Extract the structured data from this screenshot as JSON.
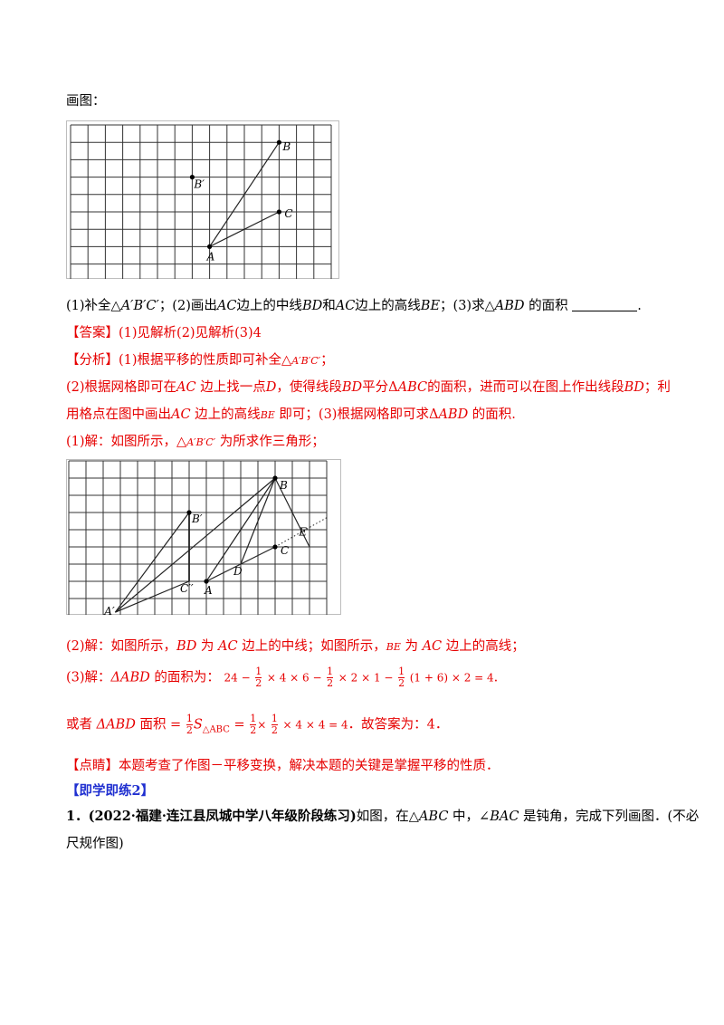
{
  "drawing_label": "画图：",
  "figure1": {
    "points": [
      {
        "label": "B",
        "gx": 12,
        "gy": 0
      },
      {
        "label": "B′",
        "gx": 7,
        "gy": 2
      },
      {
        "label": "C",
        "gx": 12,
        "gy": 4
      },
      {
        "label": "A",
        "gx": 8,
        "gy": 6
      }
    ]
  },
  "question": {
    "p1": "(1)补全△",
    "p1_it": "A′B′C′",
    "p2": "；(2)画出",
    "p2_it": "AC",
    "p3": "边上的中线",
    "p3_it": "BD",
    "p4": "和",
    "p4_it": "AC",
    "p5": "边上的高线",
    "p5_it": "BE",
    "p6": "；(3)求△",
    "p6_it": "ABD",
    "p7": " 的面积",
    "p8": "."
  },
  "answer": {
    "tag": "【答案】",
    "text": "(1)见解析(2)见解析(3)4"
  },
  "analysis": {
    "tag": "【分析】",
    "l1": "(1)根据平移的性质即可补全△",
    "l1_it": "A′B′C′",
    "l1_end": "；",
    "l2a": "(2)根据网格即可在",
    "l2b": "AC",
    "l2c": " 边上找一点",
    "l2d": "D",
    "l2e": "，使得线段",
    "l2f": "BD",
    "l2g": "平分Δ",
    "l2h": "ABC",
    "l2i": "的面积，进而可以在图上作出线段",
    "l2j": "BD",
    "l2k": "；利",
    "l3a": "用格点在图中画出",
    "l3b": "AC",
    "l3c": " 边上的高线",
    "l3d": "BE",
    "l3e": " 即可；(3)根据网格即可求Δ",
    "l3f": "ABD",
    "l3g": " 的面积."
  },
  "solution1": {
    "a": "(1)解：如图所示，△",
    "b": "A′B′C′",
    "c": " 为所求作三角形；"
  },
  "figure2": {
    "labels": [
      "B",
      "B′",
      "E",
      "C",
      "D",
      "C′′",
      "A",
      "A′"
    ]
  },
  "solution2": {
    "a": "(2)解：如图所示，",
    "b": "BD",
    "c": " 为 ",
    "d": "AC",
    "e": " 边上的中线；如图所示，",
    "f": "BE",
    "g": " 为 ",
    "h": "AC",
    "i": " 边上的高线；"
  },
  "solution3": {
    "a": "(3)解：",
    "b": "ΔABD",
    "c": " 的面积为：",
    "expr_start": "24 −",
    "f1n": "1",
    "f1d": "2",
    "m1": "× 4 × 6 −",
    "f2n": "1",
    "f2d": "2",
    "m2": "× 2 × 1 −",
    "f3n": "1",
    "f3d": "2",
    "m3": "(1 + 6) × 2 = 4",
    "end": "."
  },
  "solution4": {
    "a": "或者 ",
    "b": "ΔABD",
    "c": " 面积 =",
    "f1n": "1",
    "f1d": "2",
    "s": "S",
    "s_sub": "△ABC",
    "eq": " =",
    "f2n": "1",
    "f2d": "2",
    "x": "×",
    "f3n": "1",
    "f3d": "2",
    "rest": "× 4 × 4 = 4",
    "end": "．故答案为：4．"
  },
  "comment": {
    "tag": "【点睛】",
    "text": "本题考查了作图－平移变换，解决本题的关键是掌握平移的性质．"
  },
  "practice": {
    "title": "【即学即练2】"
  },
  "problem1": {
    "num": "1．",
    "source": "(2022·福建·连江县凤城中学八年级阶段练习)",
    "a": "如图，在△",
    "b": "ABC",
    "c": " 中，∠",
    "d": "BAC",
    "e": " 是钝角，完成下列画图．(不必",
    "f": "尺规作图)"
  }
}
